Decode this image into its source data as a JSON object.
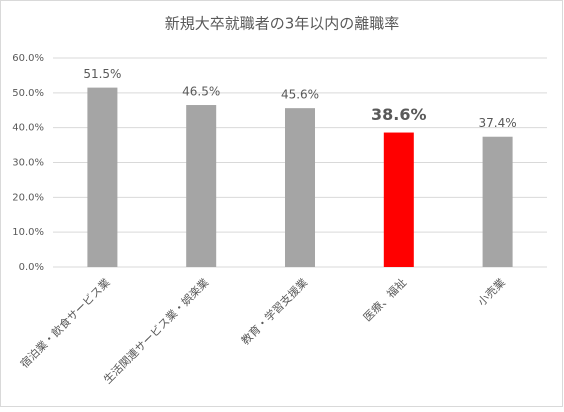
{
  "chart_data": {
    "type": "bar",
    "title": "新規大卒就職者の3年以内の離職率",
    "categories": [
      "宿泊業・飲食サービス業",
      "生活関連サービス業・娯楽業",
      "教育・学習支援業",
      "医療、福祉",
      "小売業"
    ],
    "values": [
      51.5,
      46.5,
      45.6,
      38.6,
      37.4
    ],
    "value_labels": [
      "51.5%",
      "46.5%",
      "45.6%",
      "38.6%",
      "37.4%"
    ],
    "colors": [
      "#a5a5a5",
      "#a5a5a5",
      "#a5a5a5",
      "#ff0000",
      "#a5a5a5"
    ],
    "ylim": [
      0,
      60
    ],
    "yticks": [
      {
        "value": 0,
        "label": "0.0%"
      },
      {
        "value": 10,
        "label": "10.0%"
      },
      {
        "value": 20,
        "label": "20.0%"
      },
      {
        "value": 30,
        "label": "30.0%"
      },
      {
        "value": 40,
        "label": "40.0%"
      },
      {
        "value": 50,
        "label": "50.0%"
      },
      {
        "value": 60,
        "label": "60.0%"
      }
    ],
    "grid": true
  }
}
